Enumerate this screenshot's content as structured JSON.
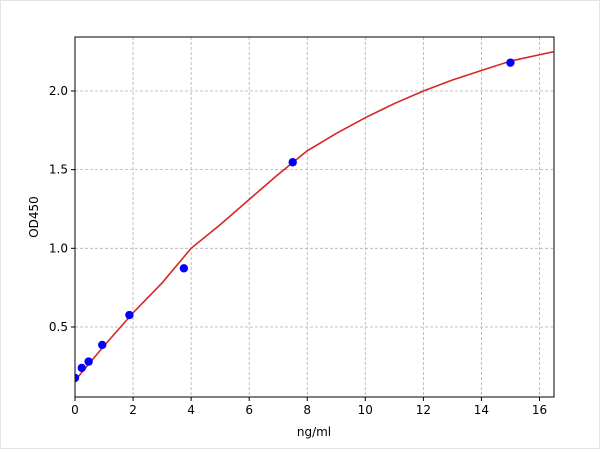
{
  "chart_data": {
    "type": "scatter",
    "xlabel": "ng/ml",
    "ylabel": "OD450",
    "xlim": [
      0,
      16.5
    ],
    "ylim": [
      0.055,
      2.343
    ],
    "xticks": [
      0,
      2,
      4,
      6,
      8,
      10,
      12,
      14,
      16
    ],
    "yticks": [
      0.5,
      {
        "value": 1,
        "label": "1.0"
      },
      1.5,
      {
        "value": 2,
        "label": "2.0"
      }
    ],
    "grid": true,
    "series": [
      {
        "kind": "line",
        "color": "#d62728",
        "x": [
          0,
          1,
          2,
          3,
          4,
          5,
          6,
          7,
          8,
          9,
          10,
          11,
          12,
          13,
          14,
          15,
          16,
          16.5
        ],
        "values": [
          0.16,
          0.38,
          0.59,
          0.78,
          1.0,
          1.15,
          1.31,
          1.47,
          1.62,
          1.73,
          1.83,
          1.92,
          2.0,
          2.07,
          2.13,
          2.19,
          2.23,
          2.25
        ]
      },
      {
        "kind": "points",
        "color": "#0000ff",
        "x": [
          0,
          0.234,
          0.469,
          0.938,
          1.875,
          3.75,
          7.5,
          15
        ],
        "values": [
          0.176,
          0.24,
          0.28,
          0.386,
          0.576,
          0.873,
          1.547,
          2.18
        ]
      }
    ]
  }
}
